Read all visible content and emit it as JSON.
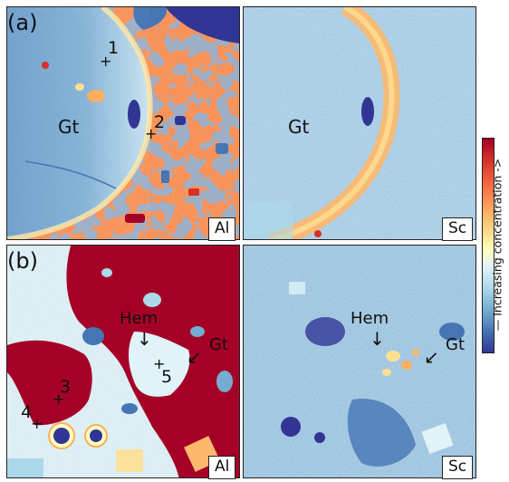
{
  "labels": {
    "row_a": "(a)",
    "row_b": "(b)",
    "al": "Al",
    "sc": "Sc",
    "gt": "Gt",
    "hem": "Hem",
    "point_1": "1",
    "point_2": "2",
    "point_3": "3",
    "point_4": "4",
    "point_5": "5",
    "colorbar": "— Increasing concentration ->"
  },
  "colors": {
    "high": "#a50026",
    "mid_high": "#f46d43",
    "mid": "#ffffbf",
    "mid_low": "#74add1",
    "low": "#313695"
  }
}
